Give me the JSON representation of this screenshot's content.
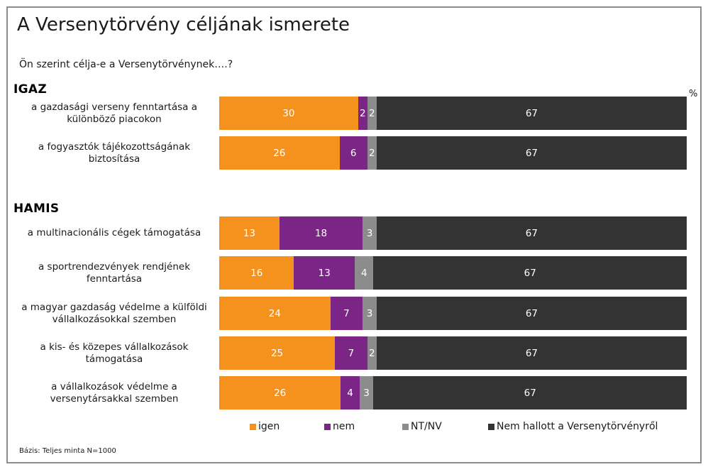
{
  "title": "A Versenytörvény céljának ismerete",
  "subtitle": "Ön szerint célja-e a Versenytörvénynek….?",
  "unit": "%",
  "note": "Bázis: Teljes minta N=1000",
  "colors": {
    "igen": "#f5921e",
    "nem": "#7b2587",
    "ntnv": "#8c8c8c",
    "nemhallott": "#333333"
  },
  "chart_data": {
    "type": "bar",
    "orientation": "horizontal",
    "stacked": true,
    "groups": [
      {
        "label": "IGAZ",
        "categories": [
          "a gazdasági verseny fenntartása a különböző piacokon",
          "a fogyasztók tájékozottságának biztosítása"
        ]
      },
      {
        "label": "HAMIS",
        "categories": [
          "a multinacionális cégek támogatása",
          "a sportrendezvények rendjének fenntartása",
          "a magyar gazdaság védelme a külföldi vállalkozásokkal szemben",
          "a kis- és közepes vállalkozások támogatása",
          "a vállalkozások védelme a versenytársakkal szemben"
        ]
      }
    ],
    "categories": [
      "a gazdasági verseny fenntartása a különböző piacokon",
      "a fogyasztók tájékozottságának biztosítása",
      "a multinacionális cégek támogatása",
      "a sportrendezvények rendjének fenntartása",
      "a magyar gazdaság védelme a külföldi vállalkozásokkal szemben",
      "a kis- és közepes vállalkozások támogatása",
      "a vállalkozások védelme a versenytársakkal szemben"
    ],
    "series": [
      {
        "key": "igen",
        "name": "igen",
        "color": "#f5921e",
        "values": [
          30,
          26,
          13,
          16,
          24,
          25,
          26
        ]
      },
      {
        "key": "nem",
        "name": "nem",
        "color": "#7b2587",
        "values": [
          2,
          6,
          18,
          13,
          7,
          7,
          4
        ]
      },
      {
        "key": "ntnv",
        "name": "NT/NV",
        "color": "#8c8c8c",
        "values": [
          2,
          2,
          3,
          4,
          3,
          2,
          3
        ]
      },
      {
        "key": "nemhallott",
        "name": "Nem hallott a Versenytörvényről",
        "color": "#333333",
        "values": [
          67,
          67,
          67,
          67,
          67,
          67,
          67
        ]
      }
    ],
    "xlim": [
      0,
      100
    ],
    "legend_position": "bottom",
    "grid": false
  }
}
